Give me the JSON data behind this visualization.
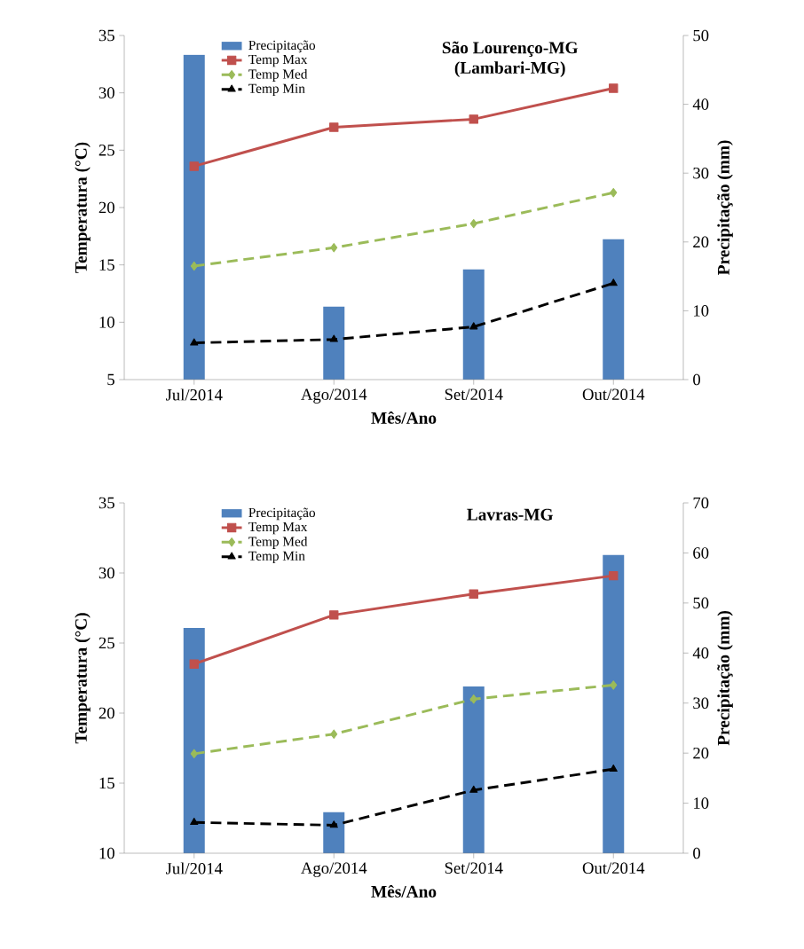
{
  "chart_data": [
    {
      "type": "line",
      "title": "São Lourenço-MG",
      "subtitle": "(Lambari-MG)",
      "xlabel": "Mês/Ano",
      "ylabel": "Temperatura  (°C)",
      "y2label": "Precipitação (mm)",
      "categories": [
        "Jul/2014",
        "Ago/2014",
        "Set/2014",
        "Out/2014"
      ],
      "ylim": [
        5,
        35
      ],
      "yticks": [
        5,
        10,
        15,
        20,
        25,
        30,
        35
      ],
      "y2lim": [
        0,
        50
      ],
      "y2ticks": [
        0,
        10,
        20,
        30,
        40,
        50
      ],
      "legend": "top left",
      "grid": false,
      "series": [
        {
          "name": "Precipitação",
          "type": "bar",
          "axis": "y2",
          "color": "#4f81bd",
          "values": [
            47.2,
            10.6,
            16.0,
            20.4
          ]
        },
        {
          "name": "Temp Max",
          "color": "#c0504d",
          "marker": "square",
          "line_style": "solid",
          "values": [
            23.6,
            27.0,
            27.7,
            30.4
          ]
        },
        {
          "name": "Temp Med",
          "color": "#9bbb59",
          "marker": "diamond",
          "line_style": "dashed",
          "values": [
            14.9,
            16.5,
            18.6,
            21.3
          ]
        },
        {
          "name": "Temp Min",
          "color": "#000000",
          "marker": "triangle",
          "line_style": "dashed",
          "values": [
            8.2,
            8.5,
            9.6,
            13.4
          ]
        }
      ]
    },
    {
      "type": "line",
      "title": "Lavras-MG",
      "xlabel": "Mês/Ano",
      "ylabel": "Temperatura  (°C)",
      "y2label": "Precipitação (mm)",
      "categories": [
        "Jul/2014",
        "Ago/2014",
        "Set/2014",
        "Out/2014"
      ],
      "ylim": [
        10,
        35
      ],
      "yticks": [
        10,
        15,
        20,
        25,
        30,
        35
      ],
      "y2lim": [
        0,
        70
      ],
      "y2ticks": [
        0,
        10,
        20,
        30,
        40,
        50,
        60,
        70
      ],
      "legend": "top left",
      "grid": false,
      "series": [
        {
          "name": "Precipitação",
          "type": "bar",
          "axis": "y2",
          "color": "#4f81bd",
          "values": [
            45.0,
            8.2,
            33.3,
            59.6
          ]
        },
        {
          "name": "Temp Max",
          "color": "#c0504d",
          "marker": "square",
          "line_style": "solid",
          "values": [
            23.5,
            27.0,
            28.5,
            29.8
          ]
        },
        {
          "name": "Temp Med",
          "color": "#9bbb59",
          "marker": "diamond",
          "line_style": "dashed",
          "values": [
            17.1,
            18.5,
            21.0,
            22.0
          ]
        },
        {
          "name": "Temp Min",
          "color": "#000000",
          "marker": "triangle",
          "line_style": "dashed",
          "values": [
            12.2,
            12.0,
            14.5,
            16.0
          ]
        }
      ]
    }
  ]
}
